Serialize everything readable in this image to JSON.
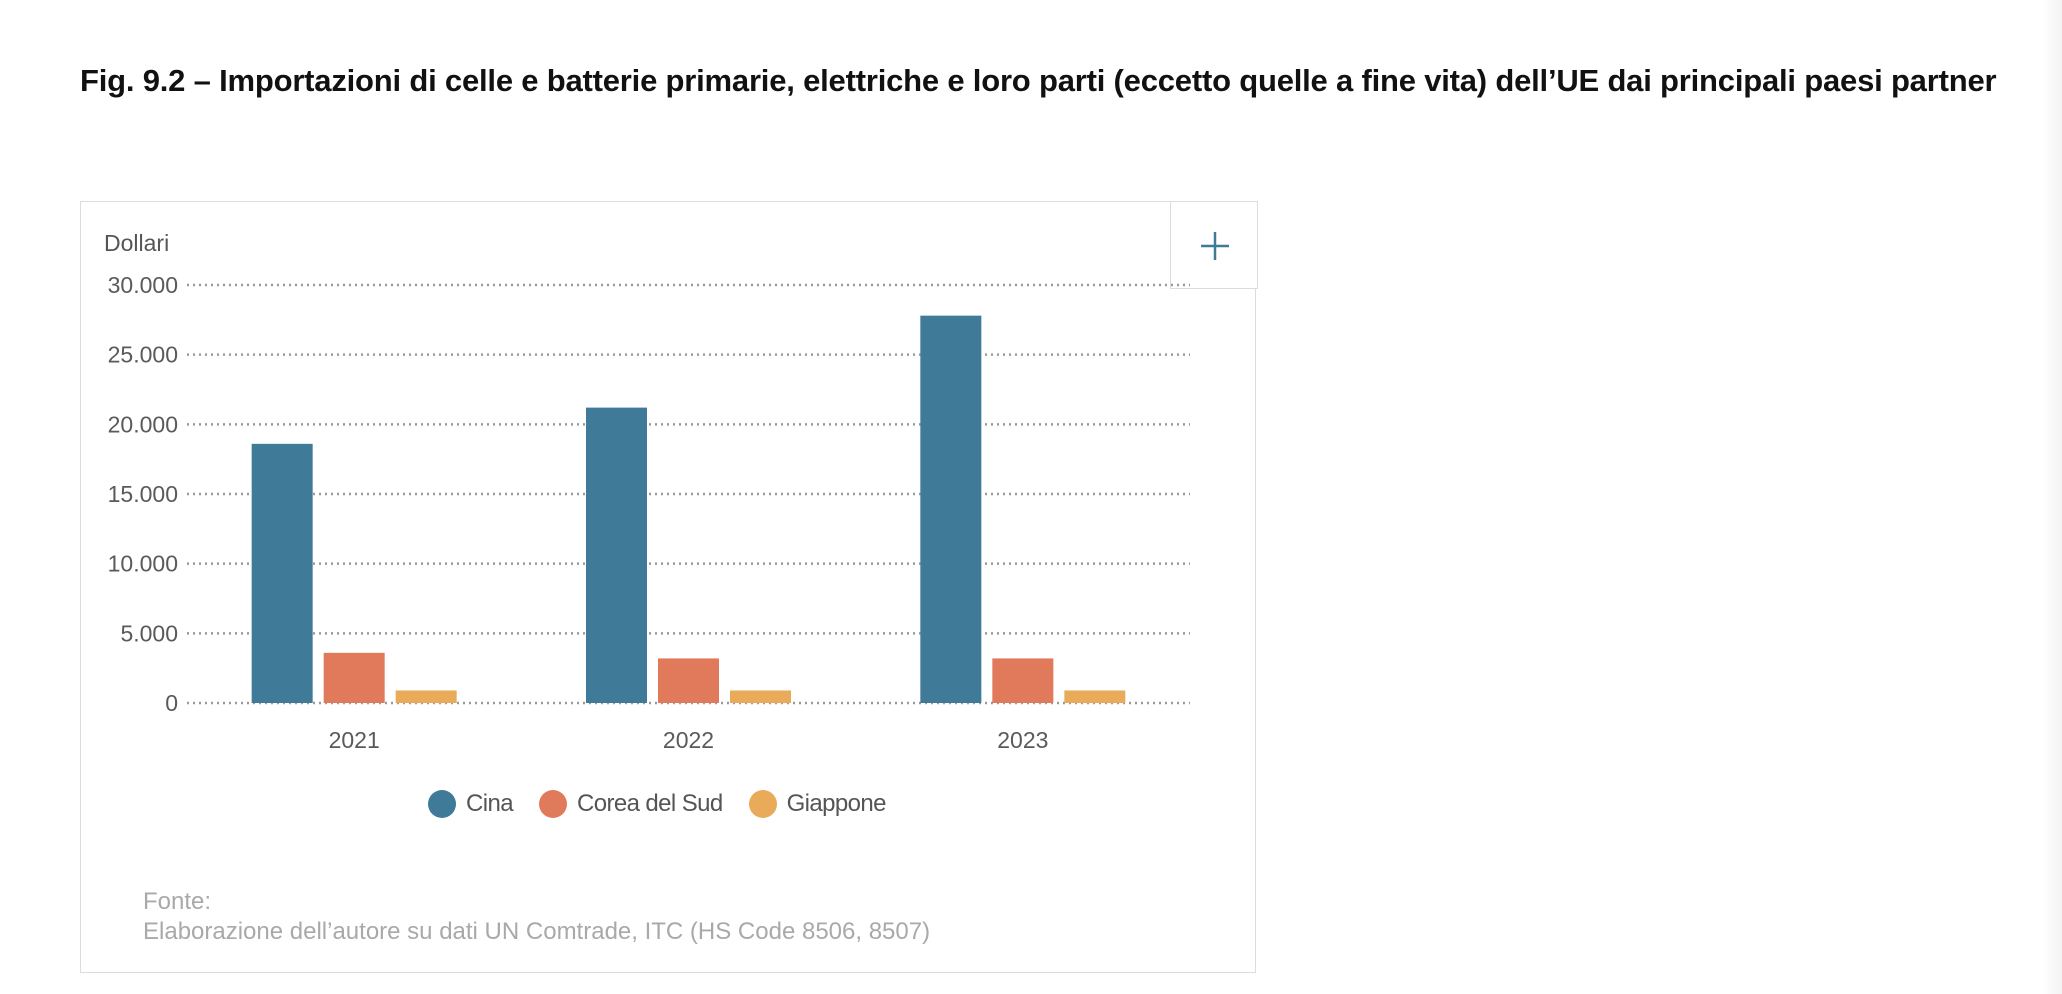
{
  "title": "Fig. 9.2 – Importazioni di celle e batterie primarie, elettriche e loro parti (eccetto quelle a fine vita) dell’UE dai principali paesi partner",
  "expand_button": {
    "icon": "plus-icon"
  },
  "colors": {
    "Cina": "#3f7a99",
    "Corea del Sud": "#e07a5a",
    "Giappone": "#e9aa5a",
    "grid": "#9a9a9a"
  },
  "source": {
    "label": "Fonte:",
    "text": "Elaborazione dell’autore su dati UN Comtrade, ITC (HS Code 8506, 8507)"
  },
  "chart_data": {
    "type": "bar",
    "title": "",
    "xlabel": "",
    "ylabel": "Dollari",
    "categories": [
      "2021",
      "2022",
      "2023"
    ],
    "series": [
      {
        "name": "Cina",
        "values": [
          18600,
          21200,
          27800
        ]
      },
      {
        "name": "Corea del Sud",
        "values": [
          3600,
          3200,
          3200
        ]
      },
      {
        "name": "Giappone",
        "values": [
          900,
          900,
          900
        ]
      }
    ],
    "ylim": [
      0,
      30000
    ],
    "yticks": [
      0,
      5000,
      10000,
      15000,
      20000,
      25000,
      30000
    ],
    "ytick_labels": [
      "0",
      "5.000",
      "10.000",
      "15.000",
      "20.000",
      "25.000",
      "30.000"
    ],
    "grid": true,
    "grid_style": "dotted",
    "legend": {
      "position": "bottom-center",
      "items": [
        "Cina",
        "Corea del Sud",
        "Giappone"
      ]
    }
  }
}
